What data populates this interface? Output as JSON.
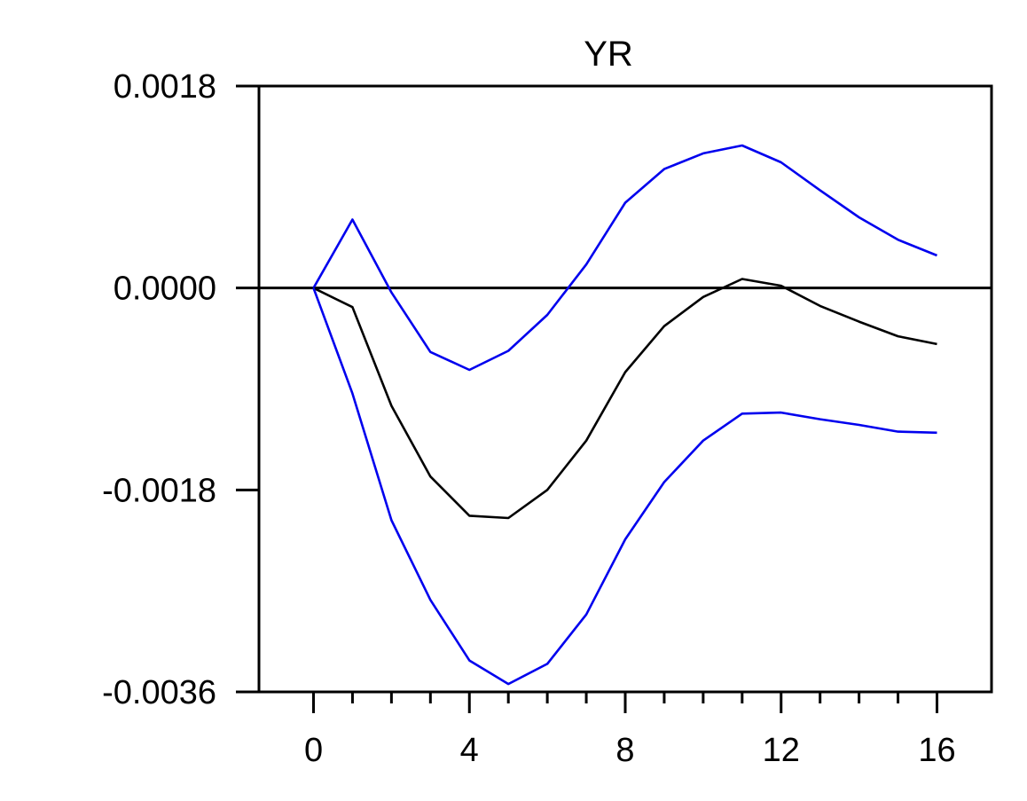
{
  "chart_data": {
    "type": "line",
    "title": "YR",
    "xlabel": "",
    "ylabel": "",
    "x": [
      0,
      1,
      2,
      3,
      4,
      5,
      6,
      7,
      8,
      9,
      10,
      11,
      12,
      13,
      14,
      15,
      16
    ],
    "xlim": [
      -1.4,
      17.4
    ],
    "ylim": [
      -0.0036,
      0.0018
    ],
    "x_ticks_major": [
      0,
      4,
      8,
      12,
      16
    ],
    "x_tick_labels": [
      "0",
      "4",
      "8",
      "12",
      "16"
    ],
    "x_ticks_minor": [
      1,
      2,
      3,
      5,
      6,
      7,
      9,
      10,
      11,
      13,
      14,
      15
    ],
    "y_ticks": [
      0.0018,
      0.0,
      -0.0018,
      -0.0036
    ],
    "y_tick_labels": [
      "0.0018",
      "0.0000",
      "-0.0018",
      "-0.0036"
    ],
    "zero_line": true,
    "grid": false,
    "legend": "none",
    "series": [
      {
        "role": "upper-band",
        "color": "#0000ee",
        "values": [
          0.0,
          0.00061,
          -4e-05,
          -0.00057,
          -0.00073,
          -0.00056,
          -0.00024,
          0.00021,
          0.00076,
          0.00106,
          0.0012,
          0.00127,
          0.00112,
          0.00087,
          0.00063,
          0.00043,
          0.00029
        ]
      },
      {
        "role": "response",
        "color": "#000000",
        "values": [
          0.0,
          -0.00017,
          -0.00105,
          -0.00168,
          -0.00203,
          -0.00205,
          -0.0018,
          -0.00136,
          -0.00075,
          -0.00034,
          -8e-05,
          8e-05,
          2e-05,
          -0.00016,
          -0.0003,
          -0.00043,
          -0.0005
        ]
      },
      {
        "role": "lower-band",
        "color": "#0000ee",
        "values": [
          0.0,
          -0.00094,
          -0.00207,
          -0.00278,
          -0.00332,
          -0.00353,
          -0.00335,
          -0.00291,
          -0.00224,
          -0.00173,
          -0.00136,
          -0.00112,
          -0.00111,
          -0.00117,
          -0.00122,
          -0.00128,
          -0.00129
        ]
      }
    ]
  }
}
